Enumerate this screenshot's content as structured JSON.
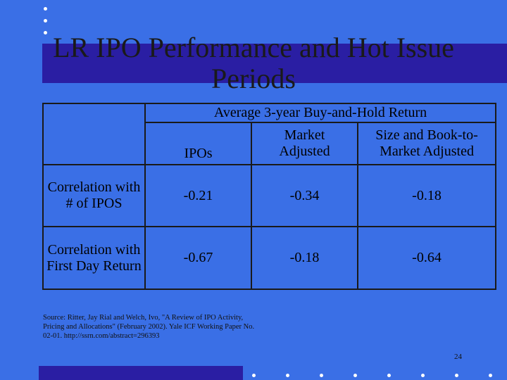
{
  "slide": {
    "title": "LR IPO Performance and Hot Issue Periods",
    "page_number": "24",
    "source": "Source: Ritter, Jay Rial and Welch, Ivo, \"A Review of IPO Activity, Pricing and Allocations\" (February 2002). Yale ICF Working Paper No. 02-01. http://ssrn.com/abstract=296393",
    "colors": {
      "background": "#3a6fe6",
      "accent_bar": "#2a1ea3",
      "dots": "#ffffff"
    }
  },
  "table": {
    "group_header": "Average 3-year Buy-and-Hold Return",
    "col_headers": [
      "IPOs",
      "Market Adjusted",
      "Size and Book-to-Market Adjusted"
    ],
    "rows": [
      {
        "label": "Correlation with # of IPOS",
        "values": [
          "-0.21",
          "-0.34",
          "-0.18"
        ]
      },
      {
        "label": "Correlation with First Day Return",
        "values": [
          "-0.67",
          "-0.18",
          "-0.64"
        ]
      }
    ]
  }
}
